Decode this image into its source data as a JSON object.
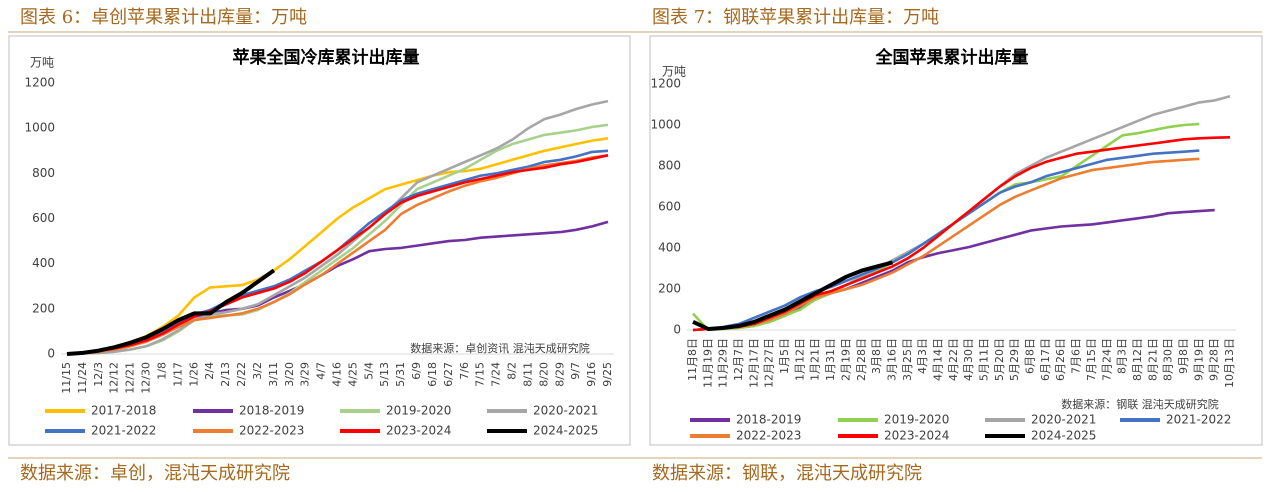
{
  "chart_data": [
    {
      "type": "line",
      "caption": "图表 6：卓创苹果累计出库量：万吨",
      "title": "苹果全国冷库累计出库量",
      "unit": "万吨",
      "note": "数据来源：卓创资讯  混沌天成研究院",
      "source": "数据来源：卓创，混沌天成研究院",
      "categories": [
        "11/15",
        "11/24",
        "12/3",
        "12/12",
        "12/21",
        "12/30",
        "1/8",
        "1/17",
        "1/26",
        "2/4",
        "2/13",
        "2/22",
        "3/2",
        "3/11",
        "3/20",
        "3/29",
        "4/7",
        "4/16",
        "4/25",
        "5/4",
        "5/13",
        "5/31",
        "6/9",
        "6/18",
        "6/27",
        "7/6",
        "7/15",
        "7/24",
        "8/2",
        "8/11",
        "8/20",
        "8/29",
        "9/7",
        "9/16",
        "9/25"
      ],
      "series": [
        {
          "name": "2017-2018",
          "color": "#FFC000",
          "values": [
            0,
            5,
            15,
            30,
            50,
            80,
            120,
            170,
            250,
            295,
            300,
            305,
            330,
            370,
            420,
            480,
            540,
            600,
            650,
            690,
            730,
            750,
            770,
            790,
            805,
            810,
            820,
            840,
            860,
            880,
            900,
            915,
            930,
            945,
            955
          ]
        },
        {
          "name": "2018-2019",
          "color": "#7030A0",
          "values": [
            0,
            5,
            10,
            25,
            40,
            60,
            90,
            130,
            165,
            180,
            195,
            200,
            215,
            250,
            280,
            310,
            350,
            390,
            420,
            455,
            465,
            470,
            480,
            490,
            500,
            505,
            515,
            520,
            525,
            530,
            535,
            540,
            550,
            565,
            585
          ]
        },
        {
          "name": "2019-2020",
          "color": "#A9D18E",
          "values": [
            0,
            3,
            5,
            10,
            20,
            35,
            60,
            100,
            150,
            170,
            170,
            175,
            195,
            230,
            270,
            320,
            370,
            420,
            470,
            530,
            590,
            660,
            730,
            760,
            790,
            820,
            860,
            900,
            930,
            950,
            970,
            980,
            990,
            1005,
            1015
          ]
        },
        {
          "name": "2020-2021",
          "color": "#A6A6A6",
          "values": [
            0,
            3,
            5,
            10,
            20,
            35,
            65,
            105,
            150,
            175,
            185,
            200,
            220,
            260,
            300,
            340,
            390,
            440,
            500,
            560,
            620,
            690,
            760,
            790,
            820,
            850,
            880,
            910,
            950,
            1000,
            1040,
            1060,
            1085,
            1105,
            1120
          ]
        },
        {
          "name": "2021-2022",
          "color": "#4472C4",
          "values": [
            0,
            5,
            15,
            25,
            45,
            70,
            100,
            140,
            175,
            195,
            230,
            260,
            280,
            300,
            330,
            370,
            410,
            460,
            520,
            580,
            630,
            680,
            710,
            730,
            750,
            770,
            790,
            800,
            815,
            830,
            850,
            860,
            875,
            895,
            900
          ]
        },
        {
          "name": "2022-2023",
          "color": "#ED7D31",
          "values": [
            0,
            3,
            10,
            20,
            35,
            55,
            85,
            120,
            150,
            160,
            170,
            180,
            200,
            230,
            265,
            310,
            350,
            400,
            450,
            500,
            550,
            620,
            660,
            690,
            720,
            745,
            765,
            780,
            800,
            820,
            835,
            845,
            855,
            870,
            880
          ]
        },
        {
          "name": "2023-2024",
          "color": "#FF0000",
          "values": [
            0,
            5,
            15,
            25,
            40,
            60,
            90,
            130,
            165,
            190,
            220,
            250,
            270,
            290,
            320,
            360,
            410,
            460,
            510,
            560,
            620,
            670,
            700,
            720,
            740,
            760,
            775,
            790,
            805,
            815,
            825,
            840,
            850,
            865,
            880
          ]
        },
        {
          "name": "2024-2025",
          "color": "#000000",
          "values": [
            0,
            5,
            15,
            30,
            50,
            75,
            110,
            150,
            180,
            180,
            230,
            270,
            320,
            370,
            null,
            null,
            null,
            null,
            null,
            null,
            null,
            null,
            null,
            null,
            null,
            null,
            null,
            null,
            null,
            null,
            null,
            null,
            null,
            null,
            null
          ]
        }
      ],
      "ylim": [
        0,
        1200
      ],
      "yticks": [
        0,
        200,
        400,
        600,
        800,
        1000,
        1200
      ],
      "grid": false,
      "legend": "bottom"
    },
    {
      "type": "line",
      "caption": "图表 7：钢联苹果累计出库量：万吨",
      "title": "全国苹果累计出库量",
      "unit": "万吨",
      "note": "数据来源：钢联  混沌天成研究院",
      "source": "数据来源：钢联，混沌天成研究院",
      "categories": [
        "11月8日",
        "11月19日",
        "11月29日",
        "12月7日",
        "12月17日",
        "12月27日",
        "1月5日",
        "1月12日",
        "1月21日",
        "1月31日",
        "2月19日",
        "2月28日",
        "3月8日",
        "3月16日",
        "3月25日",
        "4月3日",
        "4月14日",
        "4月22日",
        "4月30日",
        "5月11日",
        "5月20日",
        "5月29日",
        "6月8日",
        "6月17日",
        "6月26日",
        "7月6日",
        "7月15日",
        "7月24日",
        "8月3日",
        "8月12日",
        "8月21日",
        "8月30日",
        "9月8日",
        "9月19日",
        "9月28日",
        "10月13日"
      ],
      "series": [
        {
          "name": "2018-2019",
          "color": "#7030A0",
          "values": [
            0,
            5,
            10,
            15,
            25,
            40,
            70,
            110,
            150,
            180,
            200,
            230,
            260,
            290,
            330,
            355,
            375,
            390,
            405,
            425,
            445,
            465,
            485,
            495,
            505,
            510,
            515,
            525,
            535,
            545,
            555,
            570,
            575,
            580,
            585,
            null
          ]
        },
        {
          "name": "2019-2020",
          "color": "#92D050",
          "values": [
            80,
            0,
            5,
            10,
            20,
            40,
            70,
            100,
            150,
            180,
            220,
            260,
            290,
            330,
            370,
            420,
            470,
            520,
            570,
            620,
            670,
            710,
            720,
            735,
            750,
            800,
            850,
            900,
            950,
            960,
            975,
            990,
            1000,
            1005,
            null,
            null
          ]
        },
        {
          "name": "2020-2021",
          "color": "#A6A6A6",
          "values": [
            0,
            5,
            10,
            15,
            30,
            50,
            80,
            120,
            160,
            190,
            220,
            260,
            300,
            340,
            380,
            420,
            470,
            520,
            580,
            640,
            700,
            760,
            800,
            840,
            870,
            900,
            930,
            960,
            990,
            1020,
            1050,
            1070,
            1090,
            1110,
            1120,
            1140
          ]
        },
        {
          "name": "2021-2022",
          "color": "#4472C4",
          "values": [
            0,
            5,
            15,
            30,
            60,
            90,
            120,
            160,
            190,
            210,
            240,
            270,
            300,
            330,
            370,
            420,
            470,
            520,
            570,
            620,
            670,
            700,
            720,
            750,
            770,
            790,
            810,
            830,
            840,
            850,
            860,
            865,
            870,
            875,
            null,
            null
          ]
        },
        {
          "name": "2022-2023",
          "color": "#ED7D31",
          "values": [
            0,
            5,
            10,
            15,
            30,
            50,
            80,
            120,
            160,
            180,
            200,
            220,
            250,
            280,
            320,
            360,
            410,
            460,
            510,
            560,
            610,
            650,
            680,
            710,
            740,
            760,
            780,
            790,
            800,
            810,
            820,
            825,
            830,
            835,
            null,
            null
          ]
        },
        {
          "name": "2023-2024",
          "color": "#FF0000",
          "values": [
            0,
            5,
            10,
            15,
            30,
            60,
            90,
            130,
            170,
            190,
            220,
            250,
            280,
            310,
            350,
            400,
            460,
            520,
            580,
            640,
            700,
            750,
            790,
            820,
            840,
            860,
            870,
            880,
            890,
            900,
            910,
            920,
            930,
            935,
            938,
            940
          ]
        },
        {
          "name": "2024-2025",
          "color": "#000000",
          "values": [
            40,
            5,
            10,
            20,
            40,
            70,
            100,
            140,
            180,
            220,
            260,
            290,
            310,
            330,
            null,
            null,
            null,
            null,
            null,
            null,
            null,
            null,
            null,
            null,
            null,
            null,
            null,
            null,
            null,
            null,
            null,
            null,
            null,
            null,
            null,
            null
          ]
        }
      ],
      "ylim": [
        0,
        1200
      ],
      "yticks": [
        0,
        200,
        400,
        600,
        800,
        1000,
        1200
      ],
      "grid": false,
      "legend": "bottom"
    }
  ]
}
